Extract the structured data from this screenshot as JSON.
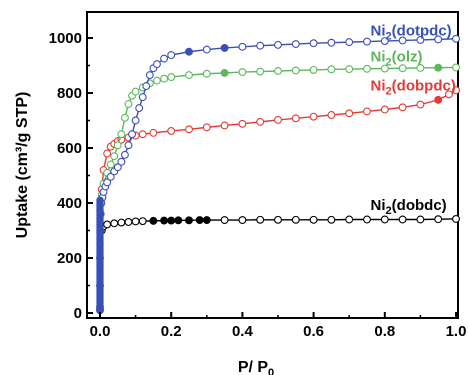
{
  "chart_data": {
    "type": "scatter",
    "xlabel": {
      "main": "P/ P",
      "sub": "0"
    },
    "ylabel": "Uptake (cm³/g STP)",
    "xlim": [
      0,
      1.0
    ],
    "ylim": [
      0,
      1050
    ],
    "x_ticks": [
      "0.0",
      "0.2",
      "0.4",
      "0.6",
      "0.8",
      "1.0"
    ],
    "y_ticks": [
      "0",
      "200",
      "400",
      "600",
      "800",
      "1000"
    ],
    "grid": false,
    "series": [
      {
        "name": "Ni₂(dotpdc)",
        "name_parts": {
          "base": "Ni",
          "sub": "2",
          "rest": "(dotpdc)"
        },
        "color": "#3b4fb8",
        "label_pos": [
          0.76,
          1010
        ],
        "x": [
          0.0,
          0.0,
          0.0,
          0.001,
          0.002,
          0.004,
          0.007,
          0.01,
          0.015,
          0.02,
          0.03,
          0.04,
          0.05,
          0.06,
          0.07,
          0.08,
          0.09,
          0.1,
          0.11,
          0.12,
          0.13,
          0.14,
          0.15,
          0.16,
          0.18,
          0.2,
          0.25,
          0.3,
          0.35,
          0.4,
          0.45,
          0.5,
          0.55,
          0.6,
          0.65,
          0.7,
          0.75,
          0.8,
          0.85,
          0.9,
          0.95,
          1.0
        ],
        "y": [
          10,
          100,
          200,
          300,
          360,
          400,
          420,
          440,
          460,
          475,
          495,
          515,
          530,
          550,
          575,
          610,
          650,
          700,
          745,
          785,
          825,
          865,
          890,
          905,
          925,
          938,
          950,
          958,
          964,
          968,
          972,
          975,
          978,
          981,
          983,
          985,
          987,
          989,
          991,
          993,
          995,
          997
        ],
        "filled": [
          0.25,
          0.35
        ]
      },
      {
        "name": "Ni₂(olz)",
        "name_parts": {
          "base": "Ni",
          "sub": "2",
          "rest": "(olz)"
        },
        "color": "#5cb85c",
        "label_pos": [
          0.76,
          915
        ],
        "x": [
          0.0,
          0.005,
          0.01,
          0.02,
          0.03,
          0.04,
          0.05,
          0.06,
          0.07,
          0.08,
          0.09,
          0.1,
          0.12,
          0.14,
          0.16,
          0.18,
          0.2,
          0.25,
          0.3,
          0.35,
          0.4,
          0.45,
          0.5,
          0.55,
          0.6,
          0.65,
          0.7,
          0.75,
          0.8,
          0.85,
          0.9,
          0.95,
          1.0
        ],
        "y": [
          20,
          430,
          470,
          510,
          540,
          570,
          610,
          650,
          710,
          760,
          790,
          805,
          820,
          835,
          845,
          852,
          858,
          865,
          870,
          873,
          876,
          878,
          880,
          882,
          884,
          886,
          887,
          888,
          889,
          890,
          891,
          892,
          893
        ],
        "filled": [
          0.35,
          0.95
        ]
      },
      {
        "name": "Ni₂(dobpdc)",
        "name_parts": {
          "base": "Ni",
          "sub": "2",
          "rest": "(dobpdc)"
        },
        "color": "#e53a35",
        "label_pos": [
          0.76,
          810
        ],
        "x": [
          0.0,
          0.005,
          0.01,
          0.02,
          0.03,
          0.04,
          0.05,
          0.06,
          0.08,
          0.1,
          0.12,
          0.15,
          0.2,
          0.25,
          0.3,
          0.35,
          0.4,
          0.45,
          0.5,
          0.55,
          0.6,
          0.65,
          0.7,
          0.75,
          0.8,
          0.85,
          0.9,
          0.95,
          0.98,
          1.0
        ],
        "y": [
          20,
          450,
          520,
          580,
          605,
          615,
          625,
          630,
          638,
          645,
          650,
          655,
          662,
          668,
          675,
          682,
          688,
          695,
          702,
          708,
          714,
          720,
          726,
          733,
          740,
          748,
          758,
          775,
          795,
          810
        ],
        "filled": [
          0.95
        ]
      },
      {
        "name": "Ni₂(dobdc)",
        "name_parts": {
          "base": "Ni",
          "sub": "2",
          "rest": "(dobdc)"
        },
        "color": "#000000",
        "label_pos": [
          0.76,
          375
        ],
        "x": [
          0.0,
          0.005,
          0.01,
          0.02,
          0.04,
          0.06,
          0.08,
          0.1,
          0.12,
          0.15,
          0.18,
          0.2,
          0.22,
          0.25,
          0.28,
          0.3,
          0.35,
          0.4,
          0.45,
          0.5,
          0.55,
          0.6,
          0.65,
          0.7,
          0.75,
          0.8,
          0.85,
          0.9,
          0.95,
          1.0
        ],
        "y": [
          20,
          300,
          315,
          322,
          326,
          329,
          331,
          333,
          334,
          335,
          336,
          336,
          337,
          337,
          338,
          338,
          338,
          338,
          339,
          339,
          339,
          339,
          339,
          340,
          340,
          340,
          340,
          340,
          341,
          342
        ],
        "filled": [
          0.15,
          0.18,
          0.2,
          0.22,
          0.25,
          0.28,
          0.3
        ]
      }
    ]
  }
}
